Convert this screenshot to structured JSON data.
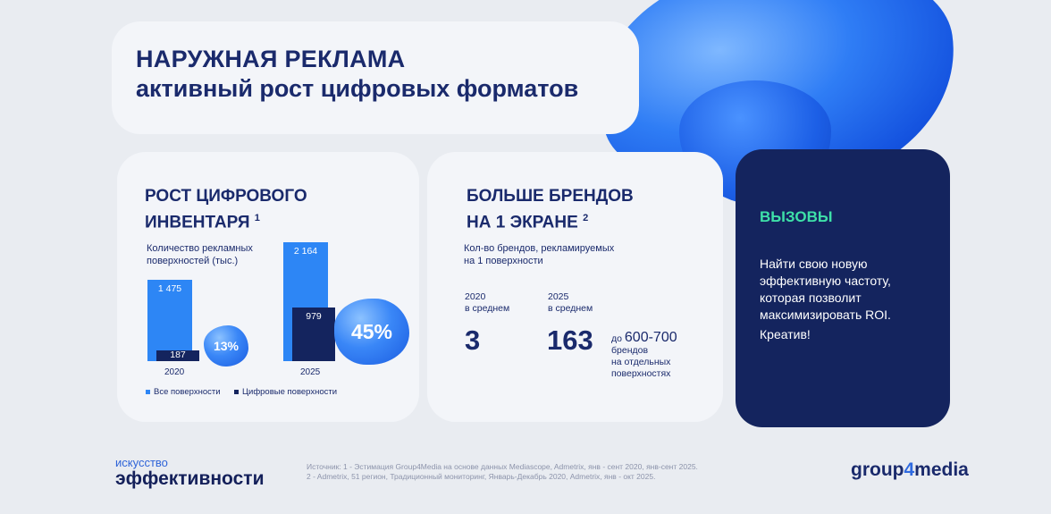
{
  "header": {
    "title_line1": "НАРУЖНАЯ РЕКЛАМА",
    "title_line2": "активный рост цифровых форматов"
  },
  "card1": {
    "title_line1": "РОСТ ЦИФРОВОГО",
    "title_line2": "ИНВЕНТАРЯ",
    "footnote": "1",
    "subtitle_line1": "Количество рекламных",
    "subtitle_line2": "поверхностей (тыс.)",
    "badge_2020": "13%",
    "badge_2025": "45%"
  },
  "chart_data": {
    "type": "bar",
    "categories": [
      "2020",
      "2025"
    ],
    "series": [
      {
        "name": "Все поверхности",
        "values": [
          1475,
          2164
        ],
        "labels": [
          "1 475",
          "2 164"
        ],
        "color": "#2d86f5"
      },
      {
        "name": "Цифровые поверхности",
        "values": [
          187,
          979
        ],
        "labels": [
          "187",
          "979"
        ],
        "color": "#14245e"
      }
    ],
    "title": "РОСТ ЦИФРОВОГО ИНВЕНТАРЯ",
    "ylabel": "Количество рекламных поверхностей (тыс.)",
    "ylim": [
      0,
      2164
    ],
    "grid": false,
    "legend": "bottom"
  },
  "card2": {
    "title_line1": "БОЛЬШЕ БРЕНДОВ",
    "title_line2": "НА 1 ЭКРАНЕ",
    "footnote": "2",
    "subtitle_line1": "Кол-во брендов, рекламируемых",
    "subtitle_line2": "на 1 поверхности",
    "col1_year": "2020",
    "col1_label": "в среднем",
    "col1_value": "3",
    "col2_year": "2025",
    "col2_label": "в среднем",
    "col2_value": "163",
    "extra_prefix": "до",
    "extra_value": "600-700",
    "extra_line1": "брендов",
    "extra_line2": "на отдельных",
    "extra_line3": "поверхностях"
  },
  "card3": {
    "title": "ВЫЗОВЫ",
    "text": "Найти свою новую эффективную частоту, которая позволит максимизировать ROI.",
    "item": "Креатив!"
  },
  "footer": {
    "logo_line1": "искусство",
    "logo_line2": "эффективности",
    "source_line1": "Источник: 1 - Эстимация Group4Media на основе данных Mediascope, Admetrix, янв - сент 2020, янв-сент 2025.",
    "source_line2": "2 - Admetrix, 51 регион, Традиционный мониторинг, Январь-Декабрь 2020, Admetrix, янв - окт 2025.",
    "brand_part1": "group",
    "brand_part2": "4",
    "brand_part3": "media"
  },
  "colors": {
    "accent_blue": "#2d86f5",
    "dark_navy": "#14245e",
    "mint": "#3ee0a8"
  }
}
